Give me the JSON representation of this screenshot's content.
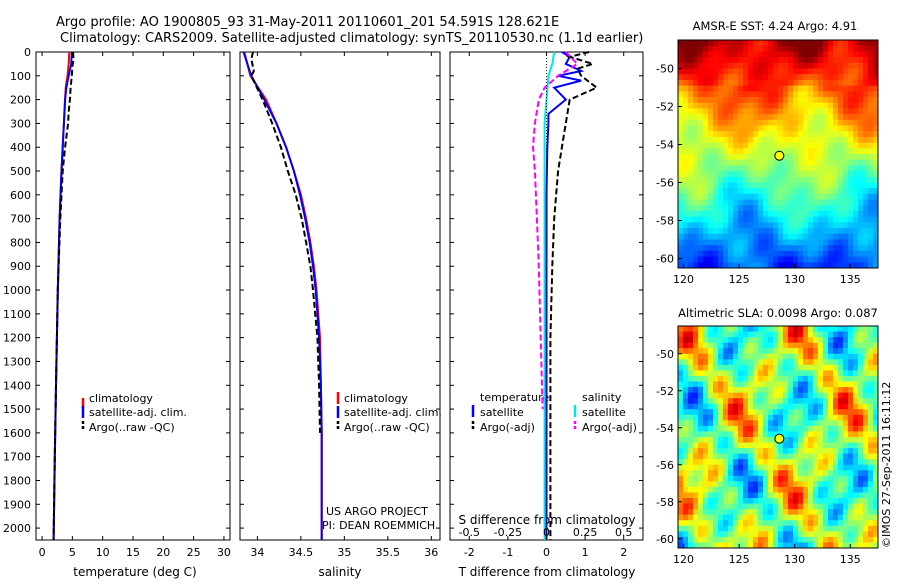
{
  "header": {
    "line1": "Argo profile: AO 1900805_93 31-May-2011 20110601_201 54.591S 128.621E",
    "line2": "Climatology: CARS2009. Satellite-adjusted climatology: synTS_20110530.nc (1.1d earlier)"
  },
  "credits": {
    "project": "US ARGO PROJECT",
    "pi": "PI: DEAN ROEMMICH",
    "imos": "©IMOS 27-Sep-2011 16:11:12"
  },
  "colors": {
    "climatology": "#ff0000",
    "satellite": "#0000ff",
    "argo": "#000000",
    "satellite_s": "#00e5e5",
    "argo_s": "#ff00ff",
    "marker": "#ffff00"
  },
  "chart_data": [
    {
      "type": "line",
      "xlabel": "temperature (deg C)",
      "ylim": [
        0,
        2050
      ],
      "xlim": [
        -1,
        31
      ],
      "xticks": [
        "0",
        "5",
        "10",
        "15",
        "20",
        "25",
        "30"
      ],
      "xtick_values": [
        0,
        5,
        10,
        15,
        20,
        25,
        30
      ],
      "yticks": [
        "0",
        "100",
        "200",
        "300",
        "400",
        "500",
        "600",
        "700",
        "800",
        "900",
        "1000",
        "1100",
        "1200",
        "1300",
        "1400",
        "1500",
        "1600",
        "1700",
        "1800",
        "1900",
        "2000"
      ],
      "ytick_values": [
        0,
        100,
        200,
        300,
        400,
        500,
        600,
        700,
        800,
        900,
        1000,
        1100,
        1200,
        1300,
        1400,
        1500,
        1600,
        1700,
        1800,
        1900,
        2000
      ],
      "legend": [
        "climatology",
        "satellite-adj. clim.",
        "Argo(..raw -QC)"
      ],
      "series": [
        {
          "name": "climatology",
          "style": "solid",
          "color": "#ff0000",
          "depth": [
            0,
            50,
            100,
            150,
            200,
            300,
            400,
            500,
            700,
            1000,
            1400,
            1700,
            2050
          ],
          "values": [
            4.5,
            4.4,
            4.2,
            3.9,
            3.8,
            3.6,
            3.4,
            3.2,
            2.9,
            2.6,
            2.3,
            2.1,
            1.9
          ]
        },
        {
          "name": "satellite-adj. clim.",
          "style": "solid",
          "color": "#0000ff",
          "depth": [
            0,
            50,
            100,
            150,
            200,
            300,
            400,
            500,
            700,
            1000,
            1400,
            1700,
            2050
          ],
          "values": [
            4.9,
            4.8,
            4.4,
            4.0,
            3.8,
            3.6,
            3.4,
            3.2,
            2.9,
            2.6,
            2.3,
            2.1,
            1.9
          ]
        },
        {
          "name": "Argo(..raw -QC)",
          "style": "dashed",
          "color": "#000000",
          "depth": [
            0,
            30,
            60,
            100,
            150,
            200,
            250,
            300,
            400,
            500,
            700,
            1000,
            1400,
            1700,
            2050
          ],
          "values": [
            5.1,
            5.2,
            5.0,
            4.9,
            4.7,
            4.6,
            4.4,
            4.3,
            3.8,
            3.4,
            3.0,
            2.6,
            2.3,
            2.1,
            1.9
          ]
        }
      ]
    },
    {
      "type": "line",
      "xlabel": "salinity",
      "ylim": [
        0,
        2050
      ],
      "xlim": [
        33.8,
        36.1
      ],
      "xticks": [
        "34",
        "34.5",
        "35",
        "35.5",
        "36"
      ],
      "xtick_values": [
        34,
        34.5,
        35,
        35.5,
        36
      ],
      "legend": [
        "climatology",
        "satellite-adj. clim.",
        "Argo(..raw -QC)"
      ],
      "series": [
        {
          "name": "climatology",
          "style": "solid",
          "color": "#ff0000",
          "depth": [
            0,
            100,
            200,
            300,
            400,
            500,
            600,
            700,
            800,
            900,
            1000,
            1200,
            1400,
            1600,
            1800,
            2050
          ],
          "values": [
            33.85,
            33.92,
            34.1,
            34.22,
            34.33,
            34.42,
            34.5,
            34.56,
            34.61,
            34.65,
            34.68,
            34.72,
            34.73,
            34.74,
            34.74,
            34.74
          ]
        },
        {
          "name": "satellite-adj. clim.",
          "style": "solid",
          "color": "#0000ff",
          "depth": [
            0,
            100,
            200,
            300,
            400,
            500,
            600,
            700,
            800,
            900,
            1000,
            1200,
            1400,
            1600,
            1800,
            2050
          ],
          "values": [
            33.84,
            33.93,
            34.08,
            34.22,
            34.33,
            34.42,
            34.49,
            34.55,
            34.6,
            34.64,
            34.67,
            34.71,
            34.73,
            34.74,
            34.74,
            34.74
          ]
        },
        {
          "name": "Argo(..raw -QC)",
          "style": "dashed",
          "color": "#000000",
          "depth": [
            0,
            30,
            80,
            100,
            200,
            300,
            400,
            500,
            600,
            700,
            800,
            900,
            1000,
            1200,
            1400,
            1600
          ],
          "values": [
            33.95,
            33.93,
            33.96,
            33.93,
            34.06,
            34.17,
            34.27,
            34.35,
            34.44,
            34.51,
            34.56,
            34.61,
            34.64,
            34.69,
            34.71,
            34.72
          ]
        }
      ]
    },
    {
      "type": "line",
      "xlabel": "T difference from climatology",
      "secondary_xlabel": "S difference from climatology",
      "ylim": [
        0,
        2050
      ],
      "xlim": [
        -2.5,
        2.5
      ],
      "xticks": [
        "-2",
        "-1",
        "0",
        "1",
        "2"
      ],
      "xtick_values": [
        -2,
        -1,
        0,
        1,
        2
      ],
      "secondary_xticks": [
        "-0.5",
        "-0.25",
        "0",
        "0.25",
        "0.5"
      ],
      "secondary_xtick_values": [
        -2,
        -1,
        0,
        1,
        2
      ],
      "legend_headers": [
        "temperature",
        "salinity"
      ],
      "legend": [
        "satellite",
        "Argo(-adj)",
        "satellite",
        "Argo(-adj)"
      ],
      "series": [
        {
          "name": "satellite",
          "style": "solid",
          "color": "#0000ff",
          "depth": [
            0,
            20,
            50,
            80,
            100,
            120,
            150,
            200,
            260,
            300,
            400,
            600,
            900,
            1200,
            1500,
            1800,
            2050
          ],
          "values": [
            0.4,
            0.6,
            0.5,
            0.9,
            0.3,
            0.9,
            0.2,
            0.5,
            0.05,
            0.05,
            0.02,
            0,
            0,
            0,
            0,
            0,
            0
          ]
        },
        {
          "name": "Argo(-adj)",
          "style": "dashed",
          "color": "#000000",
          "depth": [
            0,
            20,
            50,
            70,
            100,
            150,
            200,
            300,
            400,
            500,
            700,
            900,
            1200,
            1500,
            1800,
            2050
          ],
          "values": [
            1.1,
            0.6,
            1.2,
            0.8,
            0.9,
            1.3,
            0.6,
            0.5,
            0.4,
            0.3,
            0.2,
            0.15,
            0.1,
            0.1,
            0.1,
            0.1
          ]
        },
        {
          "name": "satellite",
          "style": "solid",
          "color": "#00e5e5",
          "depth": [
            0,
            50,
            100,
            200,
            300,
            400,
            600,
            900,
            1200,
            1500,
            1800,
            2050
          ],
          "values": [
            0.2,
            0.15,
            0.05,
            0.0,
            -0.05,
            -0.05,
            -0.05,
            -0.05,
            -0.05,
            -0.05,
            -0.05,
            -0.05
          ]
        },
        {
          "name": "Argo(-adj)",
          "style": "dashed",
          "color": "#ff00ff",
          "depth": [
            0,
            50,
            100,
            150,
            200,
            300,
            400,
            500,
            700,
            900,
            1200,
            1500
          ],
          "values": [
            0.5,
            0.8,
            0.3,
            -0.05,
            -0.2,
            -0.3,
            -0.35,
            -0.3,
            -0.25,
            -0.2,
            -0.15,
            -0.1
          ]
        }
      ]
    },
    {
      "type": "heatmap",
      "title": "AMSR-E SST: 4.24 Argo: 4.91",
      "xlim": [
        119.5,
        137.5
      ],
      "ylim": [
        -60.5,
        -48.5
      ],
      "xticks": [
        "120",
        "125",
        "130",
        "135"
      ],
      "xtick_values": [
        120,
        125,
        130,
        135
      ],
      "yticks": [
        "-50",
        "-52",
        "-54",
        "-56",
        "-58",
        "-60"
      ],
      "ytick_values": [
        -50,
        -52,
        -54,
        -56,
        -58,
        -60
      ],
      "profile_point": {
        "lon": 128.621,
        "lat": -54.591
      }
    },
    {
      "type": "heatmap",
      "title": "Altimetric SLA: 0.0098 Argo: 0.087",
      "xlim": [
        119.5,
        137.5
      ],
      "ylim": [
        -60.5,
        -48.5
      ],
      "xticks": [
        "120",
        "125",
        "130",
        "135"
      ],
      "xtick_values": [
        120,
        125,
        130,
        135
      ],
      "yticks": [
        "-50",
        "-52",
        "-54",
        "-56",
        "-58",
        "-60"
      ],
      "ytick_values": [
        -50,
        -52,
        -54,
        -56,
        -58,
        -60
      ],
      "profile_point": {
        "lon": 128.621,
        "lat": -54.591
      }
    }
  ]
}
